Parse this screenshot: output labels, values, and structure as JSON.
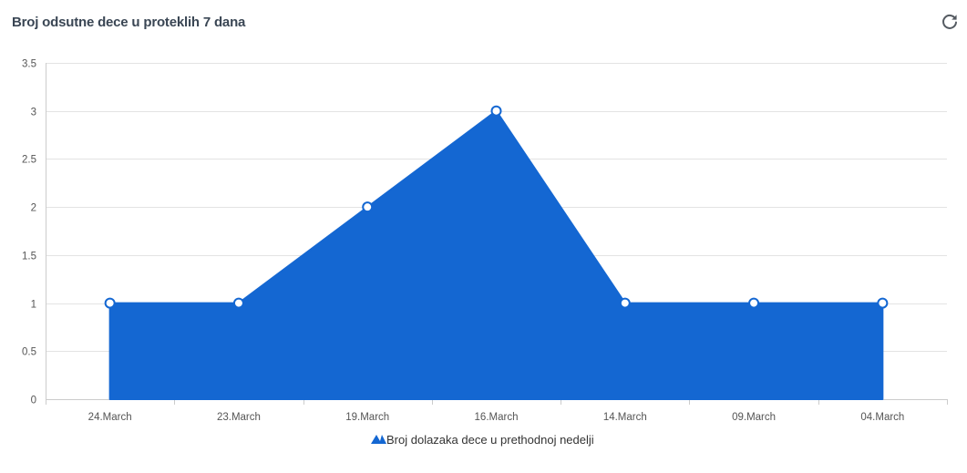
{
  "header": {
    "title": "Broj odsutne dece u proteklih 7 dana",
    "refresh_icon": "refresh-icon"
  },
  "colors": {
    "series": "#1467d2",
    "grid": "#e3e3e3",
    "axis": "#cccccc",
    "marker_fill": "#ffffff"
  },
  "chart_data": {
    "type": "area",
    "title": "",
    "xlabel": "",
    "ylabel": "",
    "categories": [
      "24.March",
      "23.March",
      "19.March",
      "16.March",
      "14.March",
      "09.March",
      "04.March"
    ],
    "series": [
      {
        "name": "Broj dolazaka dece u prethodnoj nedelji",
        "values": [
          1,
          1,
          2,
          3,
          1,
          1,
          1
        ]
      }
    ],
    "ylim": [
      0,
      3.5
    ],
    "yticks": [
      "0",
      "0.5",
      "1",
      "1.5",
      "2",
      "2.5",
      "3",
      "3.5"
    ],
    "grid": true,
    "legend": "bottom-center"
  }
}
